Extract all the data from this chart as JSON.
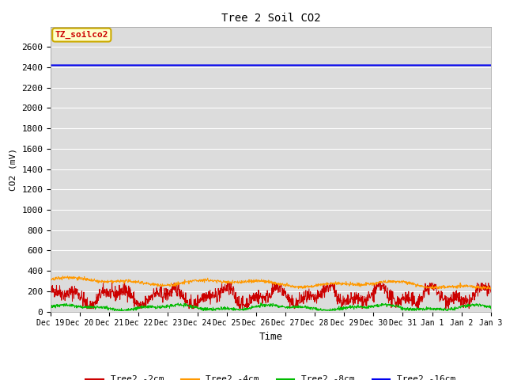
{
  "title": "Tree 2 Soil CO2",
  "ylabel": "CO2 (mV)",
  "xlabel": "Time",
  "annotation_text": "TZ_soilco2",
  "annotation_bg": "#FFFFCC",
  "annotation_border": "#CCAA00",
  "ylim": [
    0,
    2800
  ],
  "yticks": [
    0,
    200,
    400,
    600,
    800,
    1000,
    1200,
    1400,
    1600,
    1800,
    2000,
    2200,
    2400,
    2600
  ],
  "fig_bg": "#FFFFFF",
  "plot_bg": "#DCDCDC",
  "series": {
    "2cm": {
      "color": "#CC0000",
      "label": "Tree2 -2cm"
    },
    "4cm": {
      "color": "#FF9900",
      "label": "Tree2 -4cm"
    },
    "8cm": {
      "color": "#00BB00",
      "label": "Tree2 -8cm"
    },
    "16cm": {
      "color": "#0000EE",
      "label": "Tree2 -16cm"
    }
  },
  "x_tick_labels": [
    "Dec 19",
    "Dec 20",
    "Dec 21",
    "Dec 22",
    "Dec 23",
    "Dec 24",
    "Dec 25",
    "Dec 26",
    "Dec 27",
    "Dec 28",
    "Dec 29",
    "Dec 30",
    "Dec 31",
    "Jan 1",
    "Jan 2",
    "Jan 3"
  ],
  "num_points": 1500,
  "seed": 42
}
